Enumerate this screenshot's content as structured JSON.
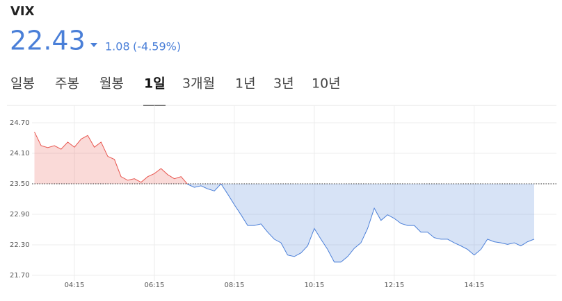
{
  "header": {
    "symbol": "VIX",
    "price": "22.43",
    "change": "1.08",
    "change_pct": "(-4.59%)"
  },
  "tabs": [
    "일봉",
    "주봉",
    "월봉",
    "1일",
    "3개월",
    "1년",
    "3년",
    "10년"
  ],
  "active_tab": 3,
  "chart_data": {
    "type": "line",
    "categories": [
      null,
      null,
      null,
      null,
      null,
      null,
      "04:15",
      null,
      null,
      null,
      null,
      null,
      null,
      null,
      null,
      null,
      null,
      null,
      "06:15",
      null,
      null,
      null,
      null,
      null,
      null,
      null,
      null,
      null,
      null,
      null,
      "08:15",
      null,
      null,
      null,
      null,
      null,
      null,
      null,
      null,
      null,
      null,
      null,
      "10:15",
      null,
      null,
      null,
      null,
      null,
      null,
      null,
      null,
      null,
      null,
      null,
      "12:15",
      null,
      null,
      null,
      null,
      null,
      null,
      null,
      null,
      null,
      null,
      null,
      "14:15",
      null,
      null,
      null,
      null,
      null,
      null,
      null,
      null,
      null
    ],
    "values": [
      24.52,
      24.25,
      24.21,
      24.25,
      24.18,
      24.32,
      24.22,
      24.38,
      24.45,
      24.22,
      24.32,
      24.04,
      23.98,
      23.64,
      23.57,
      23.6,
      23.53,
      23.64,
      23.7,
      23.8,
      23.68,
      23.6,
      23.64,
      23.49,
      23.43,
      23.46,
      23.4,
      23.36,
      23.5,
      23.3,
      23.09,
      22.89,
      22.68,
      22.68,
      22.71,
      22.55,
      22.41,
      22.34,
      22.1,
      22.07,
      22.14,
      22.28,
      22.62,
      22.41,
      22.21,
      21.96,
      21.96,
      22.07,
      22.23,
      22.34,
      22.62,
      23.02,
      22.78,
      22.89,
      22.82,
      22.72,
      22.68,
      22.68,
      22.55,
      22.55,
      22.44,
      22.41,
      22.41,
      22.34,
      22.28,
      22.21,
      22.1,
      22.21,
      22.41,
      22.36,
      22.34,
      22.31,
      22.34,
      22.28,
      22.36,
      22.41
    ],
    "baseline": 23.5,
    "color_up": "#e8554e",
    "color_down": "#4a7fd8",
    "ylim": [
      21.7,
      24.7
    ],
    "yticks": [
      {
        "value": 24.7,
        "label": "24.70"
      },
      {
        "value": 24.1,
        "label": "24.10"
      },
      {
        "value": 23.5,
        "label": "23.50"
      },
      {
        "value": 22.9,
        "label": "22.90"
      },
      {
        "value": 22.3,
        "label": "22.30"
      },
      {
        "value": 21.7,
        "label": "21.70"
      }
    ],
    "grid": true
  }
}
